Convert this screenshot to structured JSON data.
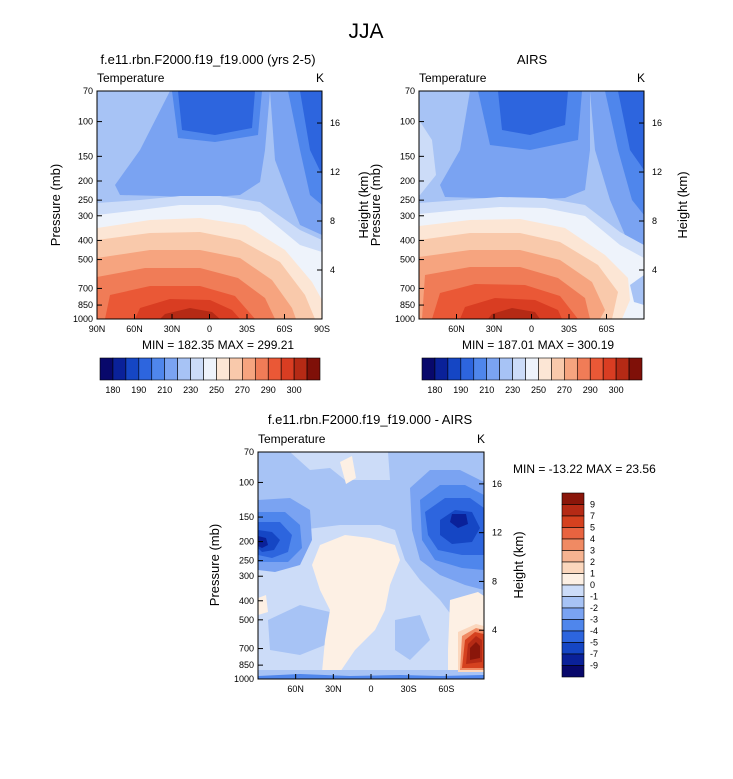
{
  "main_title": "JJA",
  "palettes": {
    "abs": [
      "#08086b",
      "#0a2199",
      "#1546c4",
      "#2d65de",
      "#4f86ec",
      "#7aa3f2",
      "#a7c3f5",
      "#ccdcf8",
      "#eef3fb",
      "#fce6d5",
      "#f9c9ab",
      "#f6a47f",
      "#f07c57",
      "#ea5836",
      "#d93d22",
      "#b52a15",
      "#7f1008"
    ],
    "diff": [
      "#08086b",
      "#0a2199",
      "#1546c4",
      "#2d65de",
      "#4f86ec",
      "#7aa3f2",
      "#a7c3f5",
      "#ccdcf8",
      "#fdf0e4",
      "#fbd7bd",
      "#f6b391",
      "#f08a63",
      "#e86340",
      "#d5411f",
      "#b52a15",
      "#8a160a"
    ]
  },
  "chart_data": [
    {
      "id": "model",
      "type": "contour",
      "title": "f.e11.rbn.F2000.f19_f19.000 (yrs 2-5)",
      "variable": "Temperature",
      "units": "K",
      "ylabel": "Pressure (mb)",
      "ylabel_right": "Height (km)",
      "pressure_ticks": [
        "70",
        "100",
        "150",
        "200",
        "250",
        "300",
        "400",
        "500",
        "700",
        "850",
        "1000"
      ],
      "height_ticks": [
        "16",
        "12",
        "8",
        "4"
      ],
      "lat_ticks": [
        "90N",
        "60N",
        "30N",
        "0",
        "30S",
        "60S",
        "90S"
      ],
      "stats": "MIN = 182.35  MAX = 299.21",
      "min": 182.35,
      "max": 299.21,
      "legend_labels": [
        "180",
        "190",
        "210",
        "230",
        "250",
        "270",
        "290",
        "300"
      ],
      "levels": [
        180,
        185,
        190,
        200,
        210,
        220,
        230,
        240,
        250,
        260,
        270,
        280,
        290,
        295,
        300
      ]
    },
    {
      "id": "airs",
      "type": "contour",
      "title": "AIRS",
      "variable": "Temperature",
      "units": "K",
      "ylabel": "Pressure (mb)",
      "ylabel_right": "Height (km)",
      "pressure_ticks": [
        "70",
        "100",
        "150",
        "200",
        "250",
        "300",
        "400",
        "500",
        "700",
        "850",
        "1000"
      ],
      "height_ticks": [
        "16",
        "12",
        "8",
        "4"
      ],
      "lat_ticks": [
        "60N",
        "30N",
        "0",
        "30S",
        "60S"
      ],
      "stats": "MIN = 187.01  MAX = 300.19",
      "min": 187.01,
      "max": 300.19,
      "legend_labels": [
        "180",
        "190",
        "210",
        "230",
        "250",
        "270",
        "290",
        "300"
      ]
    },
    {
      "id": "diff",
      "type": "contour",
      "title": "f.e11.rbn.F2000.f19_f19.000 - AIRS",
      "variable": "Temperature",
      "units": "K",
      "ylabel": "Pressure (mb)",
      "ylabel_right": "Height (km)",
      "pressure_ticks": [
        "70",
        "100",
        "150",
        "200",
        "250",
        "300",
        "400",
        "500",
        "700",
        "850",
        "1000"
      ],
      "height_ticks": [
        "16",
        "12",
        "8",
        "4"
      ],
      "lat_ticks": [
        "60N",
        "30N",
        "0",
        "30S",
        "60S"
      ],
      "stats": "MIN = -13.22  MAX =  23.56",
      "min": -13.22,
      "max": 23.56,
      "legend_labels": [
        "9",
        "7",
        "5",
        "4",
        "3",
        "2",
        "1",
        "0",
        "-1",
        "-2",
        "-3",
        "-4",
        "-5",
        "-7",
        "-9"
      ]
    }
  ]
}
